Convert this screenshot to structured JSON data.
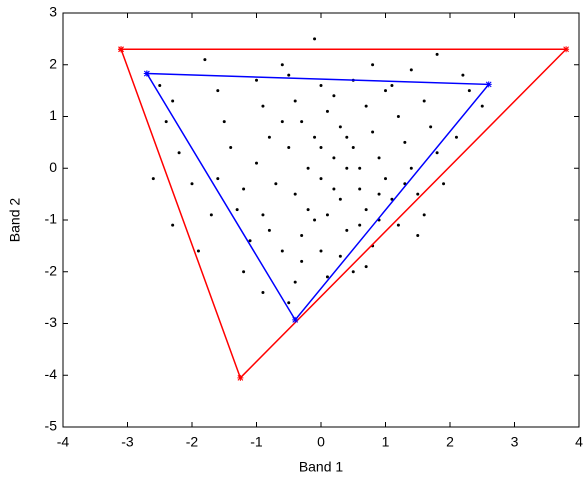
{
  "chart_data": {
    "type": "scatter",
    "x_label": "Band 1",
    "y_label": "Band 2",
    "xlim": [
      -4,
      4
    ],
    "ylim": [
      -5,
      3
    ],
    "xticks": [
      -4,
      -3,
      -2,
      -1,
      0,
      1,
      2,
      3,
      4
    ],
    "yticks": [
      -5,
      -4,
      -3,
      -2,
      -1,
      0,
      1,
      2,
      3
    ],
    "series": [
      {
        "color": "#000000",
        "mode": "markers",
        "x": [
          -2.5,
          -2.3,
          -2.4,
          -2.2,
          -2.0,
          -2.3,
          -1.9,
          -1.8,
          -1.6,
          -1.5,
          -1.4,
          -1.6,
          -1.3,
          -1.1,
          -1.2,
          -0.9,
          -0.5,
          -1.0,
          -0.9,
          -0.8,
          -1.0,
          -0.7,
          -0.9,
          -0.6,
          -0.4,
          -0.3,
          -0.5,
          -0.4,
          -0.3,
          -0.5,
          -0.2,
          -0.4,
          -0.1,
          -0.3,
          0.0,
          0.1,
          -0.1,
          0.0,
          0.1,
          -0.1,
          0.2,
          0.0,
          0.3,
          0.1,
          0.4,
          0.3,
          0.5,
          0.2,
          0.3,
          0.5,
          0.4,
          0.6,
          0.7,
          0.6,
          0.8,
          0.5,
          0.7,
          0.8,
          0.9,
          1.0,
          1.1,
          0.9,
          1.2,
          1.0,
          1.2,
          1.3,
          1.4,
          1.5,
          1.6,
          1.4,
          1.6,
          1.7,
          1.8,
          1.9,
          2.1,
          1.8,
          2.3,
          2.5,
          -1.7,
          -2.6,
          -0.6,
          0.8,
          0.2,
          -0.2,
          0.6,
          0.9,
          -0.8,
          1.3,
          0.4,
          -0.6,
          1.1,
          0.0,
          -1.2,
          2.2,
          1.5,
          0.7
        ],
        "y": [
          1.6,
          1.3,
          0.9,
          0.3,
          -0.3,
          -1.1,
          -1.6,
          2.1,
          1.5,
          0.9,
          0.4,
          -0.2,
          -0.8,
          -1.4,
          -2.0,
          -2.4,
          -2.6,
          1.7,
          1.2,
          0.6,
          0.1,
          -0.3,
          -0.9,
          -1.6,
          -2.2,
          -1.8,
          1.8,
          1.3,
          0.9,
          0.4,
          0.0,
          -0.5,
          -1.0,
          -1.3,
          -1.6,
          -2.1,
          2.5,
          1.6,
          1.1,
          0.6,
          0.2,
          -0.2,
          -0.6,
          -0.9,
          -1.2,
          -1.7,
          -2.0,
          1.4,
          0.8,
          0.4,
          0.0,
          -0.4,
          -0.8,
          -1.1,
          -1.5,
          1.7,
          1.2,
          0.7,
          0.2,
          -0.2,
          -0.6,
          -1.0,
          -1.1,
          1.5,
          1.0,
          0.5,
          0.0,
          -0.5,
          -0.9,
          1.9,
          1.3,
          0.8,
          0.3,
          -0.3,
          0.6,
          2.2,
          1.5,
          1.2,
          -0.9,
          -0.2,
          2.0,
          2.0,
          -0.4,
          -0.8,
          0.0,
          -0.5,
          -1.2,
          -0.3,
          0.6,
          0.9,
          1.6,
          0.4,
          -0.4,
          1.8,
          -1.3,
          -1.9
        ]
      },
      {
        "color": "#ff0000",
        "mode": "lines+markers",
        "x": [
          -3.1,
          3.8,
          -1.25,
          -3.1
        ],
        "y": [
          2.3,
          2.3,
          -4.05,
          2.3
        ]
      },
      {
        "color": "#0000ff",
        "mode": "lines+markers",
        "x": [
          -2.7,
          2.6,
          -0.4,
          -2.7
        ],
        "y": [
          1.83,
          1.62,
          -2.93,
          1.83
        ]
      }
    ]
  }
}
